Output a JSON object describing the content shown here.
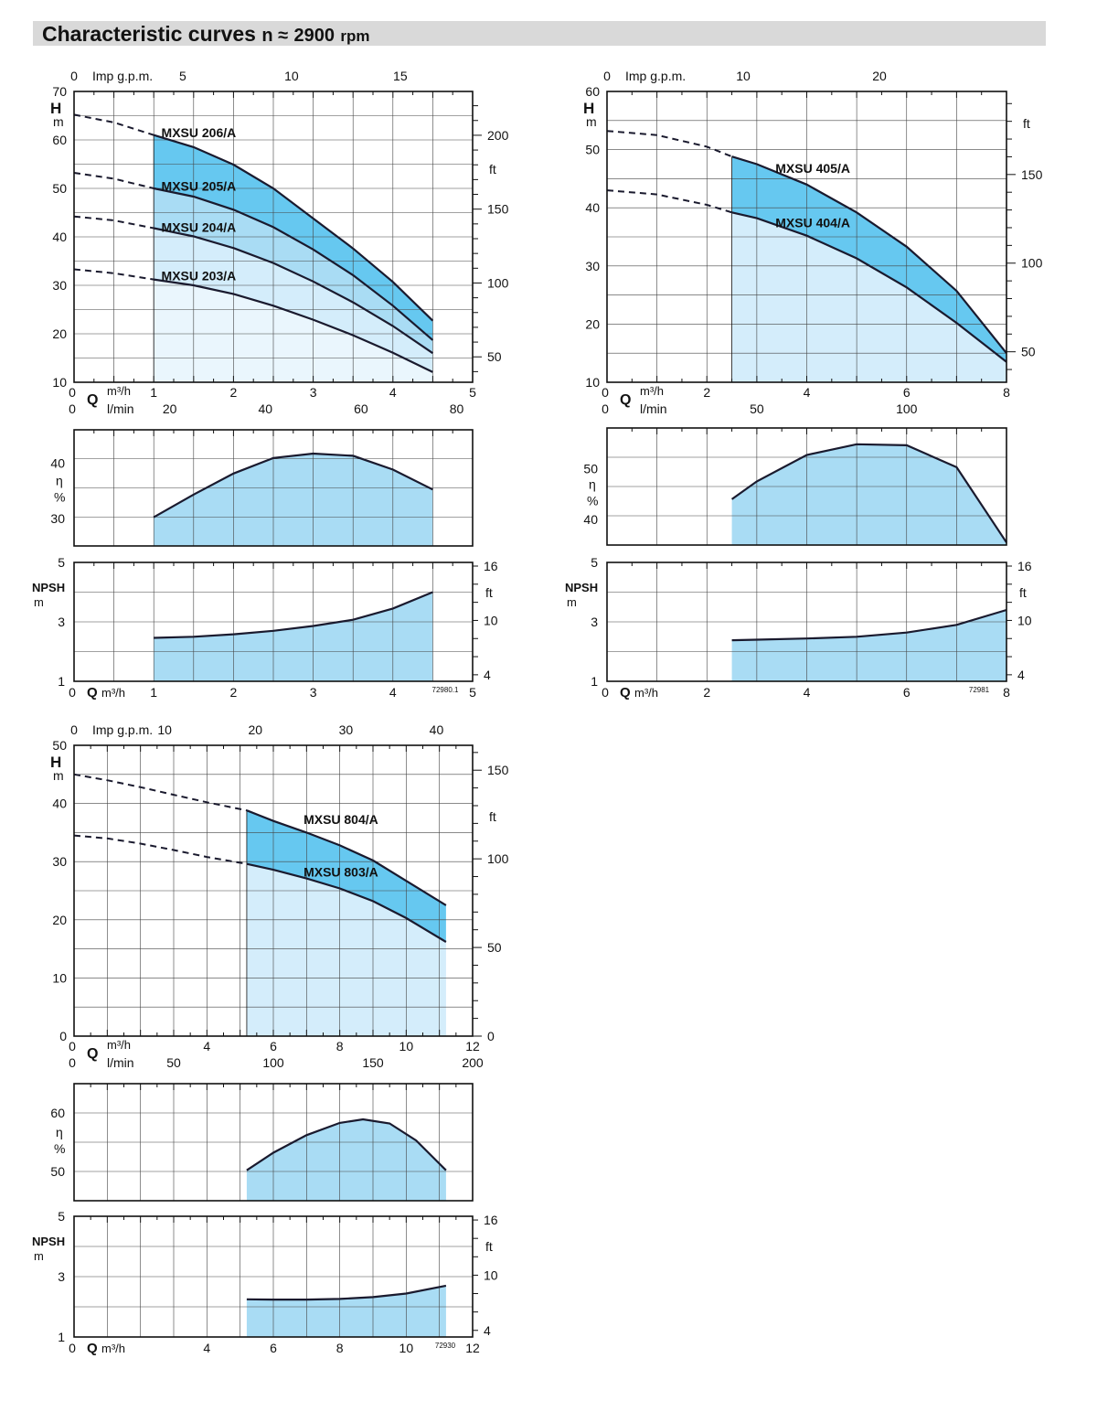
{
  "header": {
    "title": "Characteristic curves",
    "speed_symbol": "n ≈",
    "speed_value": "2900",
    "speed_unit": "rpm"
  },
  "colors": {
    "dark_fill": "#66c8f0",
    "mid_fill": "#a9dcf4",
    "light_fill": "#d4edfb",
    "pale_fill": "#eaf6fd",
    "line": "#1a1a2e",
    "grid": "#444444",
    "header_bg": "#d9d9d9"
  },
  "chart_data": [
    {
      "id": "mxsu2",
      "type": "line",
      "code": "72980.1",
      "q_range_m3h": [
        0,
        5
      ],
      "q_ticks_m3h": [
        "0",
        "1",
        "2",
        "3",
        "4",
        "5"
      ],
      "lmin_ticks": [
        {
          "v": 0,
          "t": "0"
        },
        {
          "v": 20,
          "t": "20"
        },
        {
          "v": 40,
          "t": "40"
        },
        {
          "v": 60,
          "t": "60"
        },
        {
          "v": 80,
          "t": "80"
        }
      ],
      "gpm_ticks": [
        {
          "v": 0,
          "t": "0"
        },
        {
          "v": 5,
          "t": "5"
        },
        {
          "v": 10,
          "t": "10"
        },
        {
          "v": 15,
          "t": "15"
        }
      ],
      "gpm_label": "Imp g.p.m.",
      "q_symbol": "Q",
      "q_unit": "m³/h",
      "lmin_unit": "l/min",
      "head": {
        "label": "H",
        "unit": "m",
        "range": [
          10,
          70
        ],
        "ticks": [
          "10",
          "20",
          "30",
          "40",
          "50",
          "60",
          "70"
        ],
        "ft_label": "ft",
        "ft_ticks": [
          {
            "v": 50,
            "t": "50"
          },
          {
            "v": 100,
            "t": "100"
          },
          {
            "v": 150,
            "t": "150"
          },
          {
            "v": 200,
            "t": "200"
          }
        ],
        "operating_range": [
          1,
          4.5
        ],
        "curves": [
          {
            "name": "MXSU 203/A",
            "label_at": [
              1.05,
              32
            ],
            "dashed": [
              [
                0,
                33.3
              ],
              [
                0.5,
                32.5
              ],
              [
                1,
                31.2
              ]
            ],
            "solid": [
              [
                1,
                31.2
              ],
              [
                1.5,
                30
              ],
              [
                2,
                28.2
              ],
              [
                2.5,
                25.8
              ],
              [
                3,
                22.9
              ],
              [
                3.5,
                19.7
              ],
              [
                4,
                16.1
              ],
              [
                4.5,
                12.1
              ]
            ]
          },
          {
            "name": "MXSU 204/A",
            "label_at": [
              1.05,
              42
            ],
            "dashed": [
              [
                0,
                44.2
              ],
              [
                0.5,
                43.4
              ],
              [
                1,
                41.8
              ]
            ],
            "solid": [
              [
                1,
                41.8
              ],
              [
                1.5,
                40.1
              ],
              [
                2,
                37.7
              ],
              [
                2.5,
                34.6
              ],
              [
                3,
                30.8
              ],
              [
                3.5,
                26.5
              ],
              [
                4,
                21.6
              ],
              [
                4.5,
                16
              ]
            ]
          },
          {
            "name": "MXSU 205/A",
            "label_at": [
              1.05,
              50.5
            ],
            "dashed": [
              [
                0,
                53.2
              ],
              [
                0.5,
                52
              ],
              [
                1,
                50
              ]
            ],
            "solid": [
              [
                1,
                50
              ],
              [
                1.5,
                48.3
              ],
              [
                2,
                45.6
              ],
              [
                2.5,
                42
              ],
              [
                3,
                37.4
              ],
              [
                3.5,
                32.1
              ],
              [
                4,
                25.8
              ],
              [
                4.5,
                18.7
              ]
            ]
          },
          {
            "name": "MXSU 206/A",
            "label_at": [
              1.05,
              61.5
            ],
            "dashed": [
              [
                0,
                65.2
              ],
              [
                0.5,
                63.6
              ],
              [
                1,
                61
              ]
            ],
            "solid": [
              [
                1,
                61
              ],
              [
                1.5,
                58.5
              ],
              [
                2,
                54.9
              ],
              [
                2.5,
                50
              ],
              [
                3,
                43.8
              ],
              [
                3.5,
                37.6
              ],
              [
                4,
                30.7
              ],
              [
                4.5,
                22.7
              ]
            ]
          }
        ]
      },
      "efficiency": {
        "label": "η",
        "unit": "%",
        "range": [
          25,
          46
        ],
        "ticks": [
          "30",
          "40"
        ],
        "points": [
          [
            1,
            30.2
          ],
          [
            1.5,
            34.3
          ],
          [
            2,
            38.1
          ],
          [
            2.5,
            40.9
          ],
          [
            3,
            41.7
          ],
          [
            3.5,
            41.3
          ],
          [
            4,
            38.8
          ],
          [
            4.5,
            35.2
          ]
        ]
      },
      "npsh": {
        "label": "NPSH",
        "unit": "m",
        "range": [
          1,
          5
        ],
        "ticks": [
          "1",
          "3",
          "5"
        ],
        "ft_label": "ft",
        "ft_ticks": [
          {
            "v": 4,
            "t": "4"
          },
          {
            "v": 10,
            "t": "10"
          },
          {
            "v": 16,
            "t": "16"
          }
        ],
        "points": [
          [
            1,
            2.46
          ],
          [
            1.5,
            2.5
          ],
          [
            2,
            2.58
          ],
          [
            2.5,
            2.7
          ],
          [
            3,
            2.86
          ],
          [
            3.5,
            3.07
          ],
          [
            4,
            3.45
          ],
          [
            4.5,
            4
          ]
        ]
      }
    },
    {
      "id": "mxsu4",
      "type": "line",
      "code": "72981",
      "q_range_m3h": [
        0,
        8
      ],
      "q_ticks_m3h": [
        "0",
        "2",
        "4",
        "6",
        "8"
      ],
      "lmin_ticks": [
        {
          "v": 0,
          "t": "0"
        },
        {
          "v": 50,
          "t": "50"
        },
        {
          "v": 100,
          "t": "100"
        }
      ],
      "gpm_ticks": [
        {
          "v": 0,
          "t": "0"
        },
        {
          "v": 10,
          "t": "10"
        },
        {
          "v": 20,
          "t": "20"
        }
      ],
      "gpm_label": "Imp g.p.m.",
      "q_symbol": "Q",
      "q_unit": "m³/h",
      "lmin_unit": "l/min",
      "head": {
        "label": "H",
        "unit": "m",
        "range": [
          10,
          60
        ],
        "ticks": [
          "10",
          "20",
          "30",
          "40",
          "50",
          "60"
        ],
        "ft_label": "ft",
        "ft_ticks": [
          {
            "v": 50,
            "t": "50"
          },
          {
            "v": 100,
            "t": "100"
          },
          {
            "v": 150,
            "t": "150"
          }
        ],
        "operating_range": [
          2.5,
          8
        ],
        "curves": [
          {
            "name": "MXSU 404/A",
            "label_at": [
              3.3,
              37.4
            ],
            "dashed": [
              [
                0,
                43
              ],
              [
                1,
                42.3
              ],
              [
                2,
                40.5
              ],
              [
                2.5,
                39.2
              ]
            ],
            "solid": [
              [
                2.5,
                39.2
              ],
              [
                3,
                38.2
              ],
              [
                4,
                35.2
              ],
              [
                5,
                31.3
              ],
              [
                6,
                26.3
              ],
              [
                7,
                20.2
              ],
              [
                8,
                13.5
              ]
            ]
          },
          {
            "name": "MXSU 405/A",
            "label_at": [
              3.3,
              46.8
            ],
            "dashed": [
              [
                0,
                53.2
              ],
              [
                1,
                52.5
              ],
              [
                2,
                50.5
              ],
              [
                2.5,
                48.8
              ]
            ],
            "solid": [
              [
                2.5,
                48.8
              ],
              [
                3,
                47.5
              ],
              [
                4,
                44
              ],
              [
                5,
                39.2
              ],
              [
                6,
                33.3
              ],
              [
                7,
                25.7
              ],
              [
                8,
                15
              ]
            ]
          }
        ]
      },
      "efficiency": {
        "label": "η",
        "unit": "%",
        "range": [
          35,
          58
        ],
        "ticks": [
          "40",
          "50"
        ],
        "points": [
          [
            2.5,
            44
          ],
          [
            3,
            47.5
          ],
          [
            4,
            52.7
          ],
          [
            5,
            54.8
          ],
          [
            6,
            54.6
          ],
          [
            7,
            50.3
          ],
          [
            8,
            35.5
          ]
        ]
      },
      "npsh": {
        "label": "NPSH",
        "unit": "m",
        "range": [
          1,
          5
        ],
        "ticks": [
          "1",
          "3",
          "5"
        ],
        "ft_label": "ft",
        "ft_ticks": [
          {
            "v": 4,
            "t": "4"
          },
          {
            "v": 10,
            "t": "10"
          },
          {
            "v": 16,
            "t": "16"
          }
        ],
        "points": [
          [
            2.5,
            2.38
          ],
          [
            3,
            2.4
          ],
          [
            4,
            2.44
          ],
          [
            5,
            2.5
          ],
          [
            6,
            2.64
          ],
          [
            7,
            2.9
          ],
          [
            8,
            3.4
          ]
        ]
      }
    },
    {
      "id": "mxsu8",
      "type": "line",
      "code": "72930",
      "q_range_m3h": [
        0,
        12
      ],
      "q_ticks_m3h": [
        "0",
        "4",
        "6",
        "8",
        "10",
        "12"
      ],
      "lmin_ticks": [
        {
          "v": 0,
          "t": "0"
        },
        {
          "v": 50,
          "t": "50"
        },
        {
          "v": 100,
          "t": "100"
        },
        {
          "v": 150,
          "t": "150"
        },
        {
          "v": 200,
          "t": "200"
        }
      ],
      "gpm_ticks": [
        {
          "v": 0,
          "t": "0"
        },
        {
          "v": 10,
          "t": "10"
        },
        {
          "v": 20,
          "t": "20"
        },
        {
          "v": 30,
          "t": "30"
        },
        {
          "v": 40,
          "t": "40"
        }
      ],
      "gpm_label": "Imp g.p.m.",
      "q_symbol": "Q",
      "q_unit": "m³/h",
      "lmin_unit": "l/min",
      "head": {
        "label": "H",
        "unit": "m",
        "range": [
          0,
          50
        ],
        "ticks": [
          "0",
          "10",
          "20",
          "30",
          "40",
          "50"
        ],
        "ft_label": "ft",
        "ft_ticks": [
          {
            "v": 0,
            "t": "0"
          },
          {
            "v": 50,
            "t": "50"
          },
          {
            "v": 100,
            "t": "100"
          },
          {
            "v": 150,
            "t": "150"
          }
        ],
        "operating_range": [
          5.2,
          11.2
        ],
        "curves": [
          {
            "name": "MXSU 803/A",
            "label_at": [
              6.8,
              28.2
            ],
            "dashed": [
              [
                0,
                34.5
              ],
              [
                1,
                34
              ],
              [
                2,
                33.1
              ],
              [
                3,
                32
              ],
              [
                4,
                30.8
              ],
              [
                5.2,
                29.6
              ]
            ],
            "solid": [
              [
                5.2,
                29.6
              ],
              [
                6,
                28.6
              ],
              [
                7,
                27.1
              ],
              [
                8,
                25.4
              ],
              [
                9,
                23.2
              ],
              [
                10,
                20.3
              ],
              [
                11.2,
                16.2
              ]
            ]
          },
          {
            "name": "MXSU 804/A",
            "label_at": [
              6.8,
              37.3
            ],
            "dashed": [
              [
                0,
                45
              ],
              [
                1,
                44
              ],
              [
                2,
                42.8
              ],
              [
                3,
                41.5
              ],
              [
                4,
                40.2
              ],
              [
                5.2,
                38.8
              ]
            ],
            "solid": [
              [
                5.2,
                38.8
              ],
              [
                6,
                37
              ],
              [
                7,
                35
              ],
              [
                8,
                32.8
              ],
              [
                9,
                30.2
              ],
              [
                10,
                26.7
              ],
              [
                11.2,
                22.5
              ]
            ]
          }
        ]
      },
      "efficiency": {
        "label": "η",
        "unit": "%",
        "range": [
          45,
          65
        ],
        "ticks": [
          "50",
          "60"
        ],
        "points": [
          [
            5.2,
            50.2
          ],
          [
            6,
            53.2
          ],
          [
            7,
            56.2
          ],
          [
            8,
            58.3
          ],
          [
            8.7,
            58.9
          ],
          [
            9.5,
            58.2
          ],
          [
            10.3,
            55.3
          ],
          [
            11.2,
            50.2
          ]
        ]
      },
      "npsh": {
        "label": "NPSH",
        "unit": "m",
        "range": [
          1,
          5
        ],
        "ticks": [
          "1",
          "3",
          "5"
        ],
        "ft_label": "ft",
        "ft_ticks": [
          {
            "v": 4,
            "t": "4"
          },
          {
            "v": 10,
            "t": "10"
          },
          {
            "v": 16,
            "t": "16"
          }
        ],
        "points": [
          [
            5.2,
            2.25
          ],
          [
            6,
            2.24
          ],
          [
            7,
            2.24
          ],
          [
            8,
            2.26
          ],
          [
            9,
            2.32
          ],
          [
            10,
            2.44
          ],
          [
            11.2,
            2.7
          ]
        ]
      }
    }
  ]
}
